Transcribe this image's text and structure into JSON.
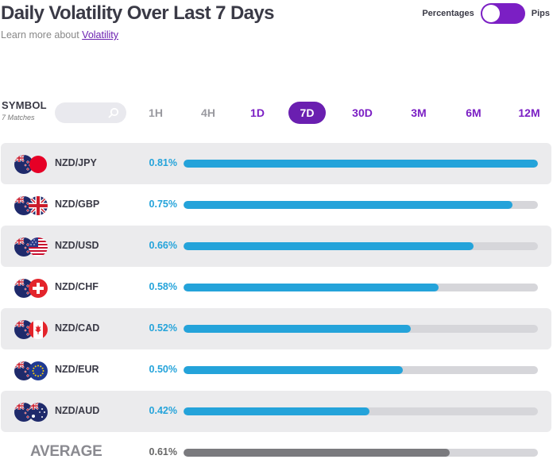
{
  "header": {
    "title": "Daily Volatility Over Last 7 Days",
    "subtitle_prefix": "Learn more about",
    "subtitle_link": "Volatility"
  },
  "toggle": {
    "left_label": "Percentages",
    "right_label": "Pips",
    "state": "percentages"
  },
  "filter": {
    "symbol_label": "SYMBOL",
    "matches": "7 Matches",
    "search_value": "",
    "search_placeholder": ""
  },
  "tabs": [
    {
      "label": "1H",
      "state": "disabled"
    },
    {
      "label": "4H",
      "state": "disabled"
    },
    {
      "label": "1D",
      "state": "enabled"
    },
    {
      "label": "7D",
      "state": "active"
    },
    {
      "label": "30D",
      "state": "enabled"
    },
    {
      "label": "3M",
      "state": "enabled"
    },
    {
      "label": "6M",
      "state": "enabled"
    },
    {
      "label": "12M",
      "state": "enabled"
    }
  ],
  "rows": [
    {
      "pair": "NZD/JPY",
      "pct": "0.81%",
      "fraction": 1.0,
      "base_flag": "nz-flag-icon",
      "quote_flag": "jp-flag-icon"
    },
    {
      "pair": "NZD/GBP",
      "pct": "0.75%",
      "fraction": 0.928,
      "base_flag": "nz-flag-icon",
      "quote_flag": "gb-flag-icon"
    },
    {
      "pair": "NZD/USD",
      "pct": "0.66%",
      "fraction": 0.818,
      "base_flag": "nz-flag-icon",
      "quote_flag": "us-flag-icon"
    },
    {
      "pair": "NZD/CHF",
      "pct": "0.58%",
      "fraction": 0.719,
      "base_flag": "nz-flag-icon",
      "quote_flag": "ch-flag-icon"
    },
    {
      "pair": "NZD/CAD",
      "pct": "0.52%",
      "fraction": 0.641,
      "base_flag": "nz-flag-icon",
      "quote_flag": "ca-flag-icon"
    },
    {
      "pair": "NZD/EUR",
      "pct": "0.50%",
      "fraction": 0.619,
      "base_flag": "nz-flag-icon",
      "quote_flag": "eu-flag-icon"
    },
    {
      "pair": "NZD/AUD",
      "pct": "0.42%",
      "fraction": 0.525,
      "base_flag": "nz-flag-icon",
      "quote_flag": "au-flag-icon"
    }
  ],
  "average": {
    "label": "AVERAGE",
    "pct": "0.61%",
    "fraction": 0.75
  },
  "colors": {
    "accent": "#6a1fb0",
    "bar": "#24a3da",
    "bar_track": "#d6d6da",
    "average_bar": "#7a7a7e",
    "row_shade": "#ebebed"
  }
}
